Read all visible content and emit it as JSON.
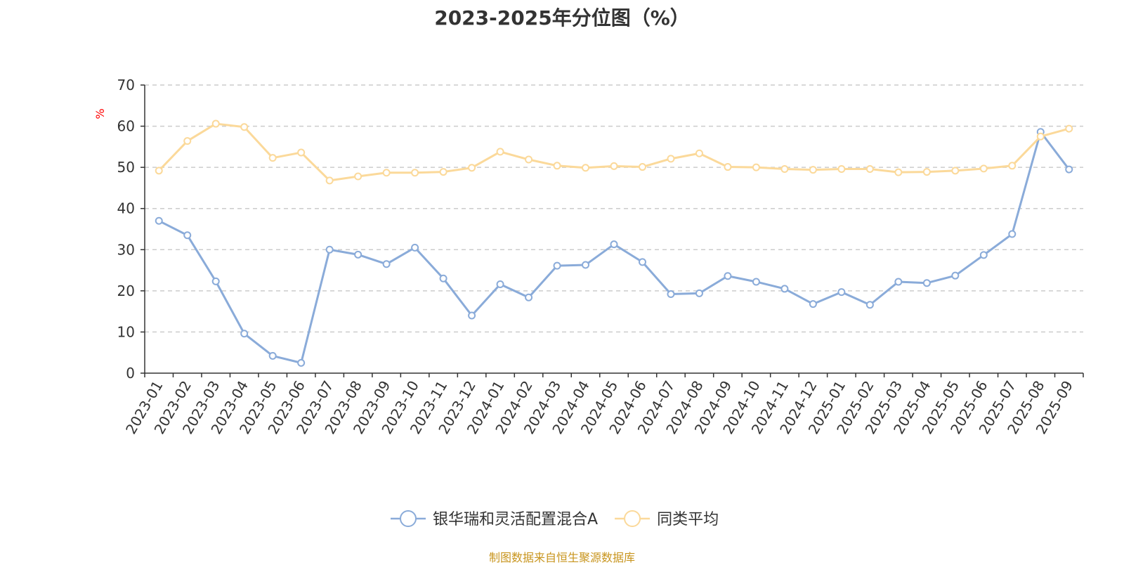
{
  "title": "2023-2025年分位图（%）",
  "source_note": "制图数据来自恒生聚源数据库",
  "colors": {
    "series_fund": "#8aabd9",
    "series_avg": "#fbd99a",
    "unit_label": "#ff0000",
    "source_note": "#c8951e",
    "grid": "#cccccc",
    "axis": "#333333"
  },
  "chart_data": {
    "type": "line",
    "title": "2023-2025年分位图（%）",
    "ylabel": "%",
    "xlabel": "",
    "ylim": [
      0,
      70
    ],
    "yticks": [
      0,
      10,
      20,
      30,
      40,
      50,
      60,
      70
    ],
    "grid": true,
    "grid_style": "dashed-horizontal",
    "legend_position": "bottom-center",
    "categories": [
      "2023-01",
      "2023-02",
      "2023-03",
      "2023-04",
      "2023-05",
      "2023-06",
      "2023-07",
      "2023-08",
      "2023-09",
      "2023-10",
      "2023-11",
      "2023-12",
      "2024-01",
      "2024-02",
      "2024-03",
      "2024-04",
      "2024-05",
      "2024-06",
      "2024-07",
      "2024-08",
      "2024-09",
      "2024-10",
      "2024-11",
      "2024-12",
      "2025-01",
      "2025-02",
      "2025-03",
      "2025-04",
      "2025-05",
      "2025-06",
      "2025-07",
      "2025-08",
      "2025-09"
    ],
    "series": [
      {
        "name": "银华瑞和灵活配置混合A",
        "color": "#8aabd9",
        "values": [
          37,
          33.5,
          22.3,
          9.6,
          4.2,
          2.5,
          30,
          28.8,
          26.5,
          30.5,
          23,
          14,
          21.6,
          18.4,
          26.1,
          26.3,
          31.3,
          27,
          19.2,
          19.4,
          23.6,
          22.2,
          20.5,
          16.8,
          19.7,
          16.6,
          22.2,
          21.9,
          23.7,
          28.7,
          33.8,
          58.6,
          49.5
        ]
      },
      {
        "name": "同类平均",
        "color": "#fbd99a",
        "values": [
          49.2,
          56.4,
          60.6,
          59.8,
          52.3,
          53.6,
          46.8,
          47.8,
          48.7,
          48.7,
          48.9,
          49.9,
          53.8,
          51.9,
          50.4,
          49.9,
          50.3,
          50.1,
          52.1,
          53.4,
          50.1,
          50.0,
          49.6,
          49.4,
          49.6,
          49.6,
          48.8,
          48.9,
          49.2,
          49.7,
          50.4,
          57.5,
          59.4
        ]
      }
    ]
  }
}
